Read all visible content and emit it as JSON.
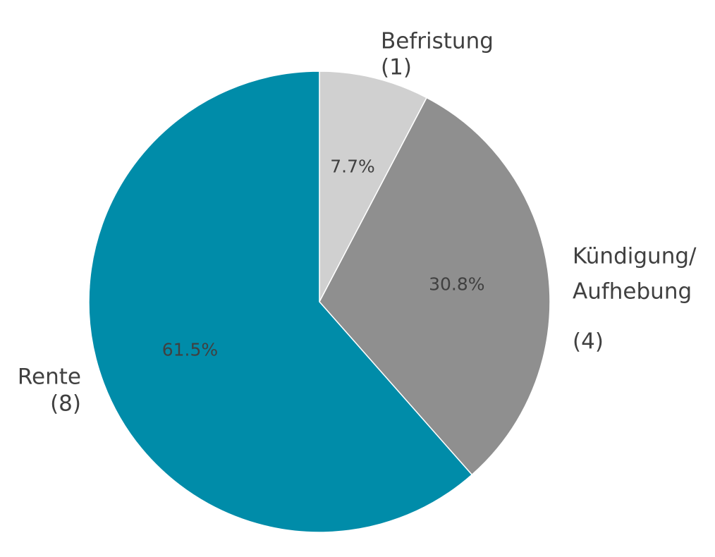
{
  "chart_data": {
    "type": "pie",
    "categories": [
      [
        "Befristung"
      ],
      [
        "Kündigung/",
        "Aufhebung"
      ],
      [
        "Rente"
      ]
    ],
    "counts": [
      "(1)",
      "(4)",
      "(8)"
    ],
    "values": [
      7.7,
      30.8,
      61.5
    ],
    "value_labels": [
      "7.7%",
      "30.8%",
      "61.5%"
    ],
    "colors": [
      "#d0d0d0",
      "#8f8f8f",
      "#008ca9"
    ]
  }
}
